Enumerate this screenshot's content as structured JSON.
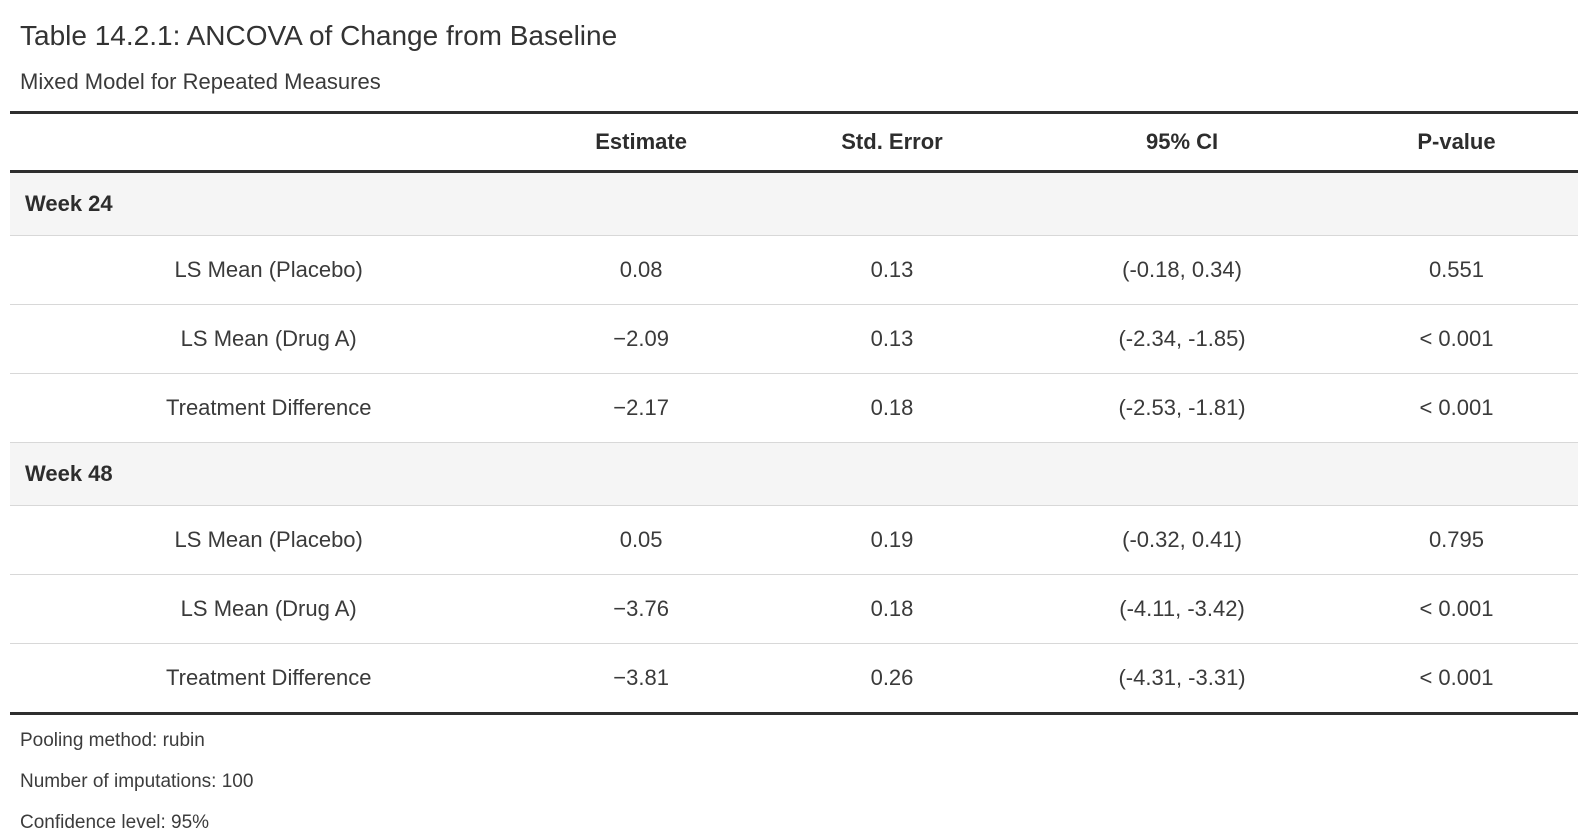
{
  "table": {
    "title": "Table 14.2.1: ANCOVA of Change from Baseline",
    "subtitle": "Mixed Model for Repeated Measures",
    "columns": [
      "",
      "Estimate",
      "Std. Error",
      "95% CI",
      "P-value"
    ],
    "groups": [
      {
        "label": "Week 24",
        "rows": [
          {
            "label": "LS Mean (Placebo)",
            "estimate": "0.08",
            "std_error": "0.13",
            "ci": "(-0.18, 0.34)",
            "p_value": "0.551"
          },
          {
            "label": "LS Mean (Drug A)",
            "estimate": "−2.09",
            "std_error": "0.13",
            "ci": "(-2.34, -1.85)",
            "p_value": "< 0.001"
          },
          {
            "label": "Treatment Difference",
            "estimate": "−2.17",
            "std_error": "0.18",
            "ci": "(-2.53, -1.81)",
            "p_value": "< 0.001"
          }
        ]
      },
      {
        "label": "Week 48",
        "rows": [
          {
            "label": "LS Mean (Placebo)",
            "estimate": "0.05",
            "std_error": "0.19",
            "ci": "(-0.32, 0.41)",
            "p_value": "0.795"
          },
          {
            "label": "LS Mean (Drug A)",
            "estimate": "−3.76",
            "std_error": "0.18",
            "ci": "(-4.11, -3.42)",
            "p_value": "< 0.001"
          },
          {
            "label": "Treatment Difference",
            "estimate": "−3.81",
            "std_error": "0.26",
            "ci": "(-4.31, -3.31)",
            "p_value": "< 0.001"
          }
        ]
      }
    ],
    "footnotes": [
      "Pooling method: rubin",
      "Number of imputations: 100",
      "Confidence level: 95%"
    ],
    "colors": {
      "rule_dark": "#2e2e2e",
      "rule_light": "#d8d8d8",
      "group_row_bg": "#f5f5f5",
      "text": "#3a3a3a"
    }
  }
}
